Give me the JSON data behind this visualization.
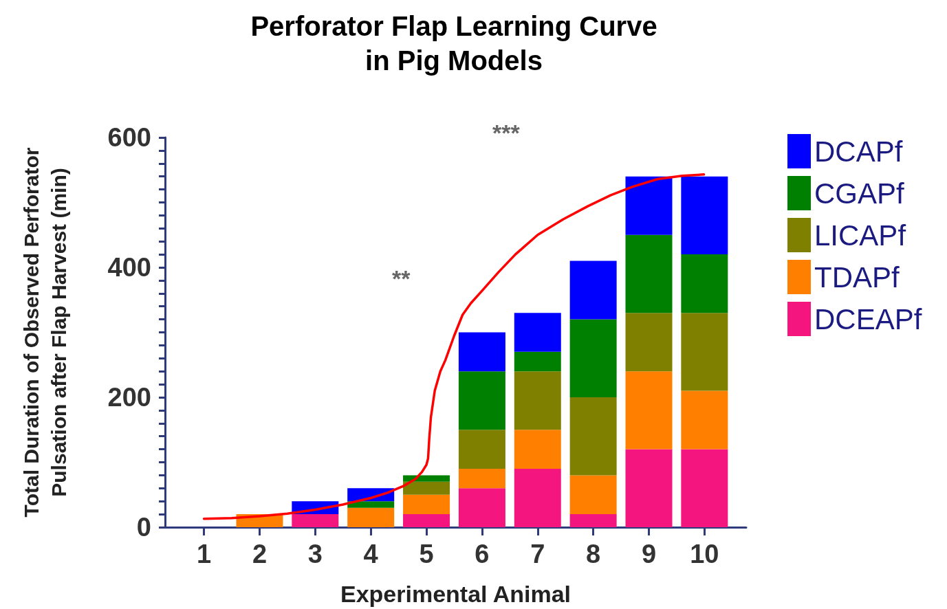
{
  "chart_data": {
    "type": "bar",
    "stacked": true,
    "title": "Perforator Flap Learning Curve\nin Pig Models",
    "xlabel": "Experimental Animal",
    "ylabel": "Total Duration of Observed Perforator\nPulsation after Flap Harvest (min)",
    "x": [
      1,
      2,
      3,
      4,
      5,
      6,
      7,
      8,
      9,
      10
    ],
    "xlim": [
      0.3,
      10.75
    ],
    "xticks": [
      1,
      2,
      3,
      4,
      5,
      6,
      7,
      8,
      9,
      10
    ],
    "ylim": [
      0,
      600
    ],
    "yticks": [
      0,
      {
        "value": 20,
        "label": null
      },
      {
        "value": 40,
        "label": null
      },
      {
        "value": 60,
        "label": null
      },
      {
        "value": 80,
        "label": null
      },
      {
        "value": 100,
        "label": null
      },
      {
        "value": 120,
        "label": null
      },
      {
        "value": 140,
        "label": null
      },
      {
        "value": 160,
        "label": null
      },
      {
        "value": 180,
        "label": null
      },
      200,
      {
        "value": 220,
        "label": null
      },
      {
        "value": 240,
        "label": null
      },
      {
        "value": 260,
        "label": null
      },
      {
        "value": 280,
        "label": null
      },
      {
        "value": 300,
        "label": null
      },
      {
        "value": 320,
        "label": null
      },
      {
        "value": 340,
        "label": null
      },
      {
        "value": 360,
        "label": null
      },
      {
        "value": 380,
        "label": null
      },
      400,
      {
        "value": 420,
        "label": null
      },
      {
        "value": 440,
        "label": null
      },
      {
        "value": 460,
        "label": null
      },
      {
        "value": 480,
        "label": null
      },
      {
        "value": 500,
        "label": null
      },
      {
        "value": 520,
        "label": null
      },
      {
        "value": 540,
        "label": null
      },
      {
        "value": 560,
        "label": null
      },
      {
        "value": 580,
        "label": null
      },
      600
    ],
    "grid": false,
    "legend": "right",
    "series": [
      {
        "name": "DCEAPf",
        "color": "#f5157f",
        "values": [
          0,
          0,
          20,
          0,
          20,
          60,
          90,
          20,
          120,
          120
        ]
      },
      {
        "name": "TDAPf",
        "color": "#ff8000",
        "values": [
          0,
          20,
          0,
          30,
          30,
          30,
          60,
          60,
          120,
          90
        ]
      },
      {
        "name": "LICAPf",
        "color": "#808000",
        "values": [
          0,
          0,
          0,
          0,
          20,
          60,
          90,
          120,
          90,
          120
        ]
      },
      {
        "name": "CGAPf",
        "color": "#008000",
        "values": [
          0,
          0,
          0,
          10,
          10,
          90,
          30,
          120,
          120,
          90
        ]
      },
      {
        "name": "DCAPf",
        "color": "#0000ff",
        "values": [
          0,
          0,
          20,
          20,
          0,
          60,
          60,
          90,
          90,
          120
        ]
      },
      {
        "type": "line",
        "color": "#ff0000",
        "marker": "none",
        "line_style": "solid",
        "x": [
          1,
          1.5,
          2,
          2.5,
          3,
          3.5,
          4,
          4.3,
          4.6,
          4.8,
          4.92,
          5.0,
          5.03,
          5.05,
          5.08,
          5.15,
          5.25,
          5.34,
          5.5,
          5.65,
          5.8,
          5.98,
          6.3,
          6.6,
          7.0,
          7.46,
          7.9,
          8.31,
          8.7,
          9.16,
          9.6,
          9.99
        ],
        "values": [
          13,
          14,
          17,
          21,
          27,
          35,
          45,
          53,
          64,
          74,
          85,
          96,
          106,
          135,
          169,
          210,
          240,
          257,
          295,
          327,
          345,
          362,
          393,
          420,
          450,
          474,
          494,
          511,
          524,
          536,
          541,
          543
        ]
      }
    ],
    "annotations": [
      "**",
      "***"
    ]
  }
}
